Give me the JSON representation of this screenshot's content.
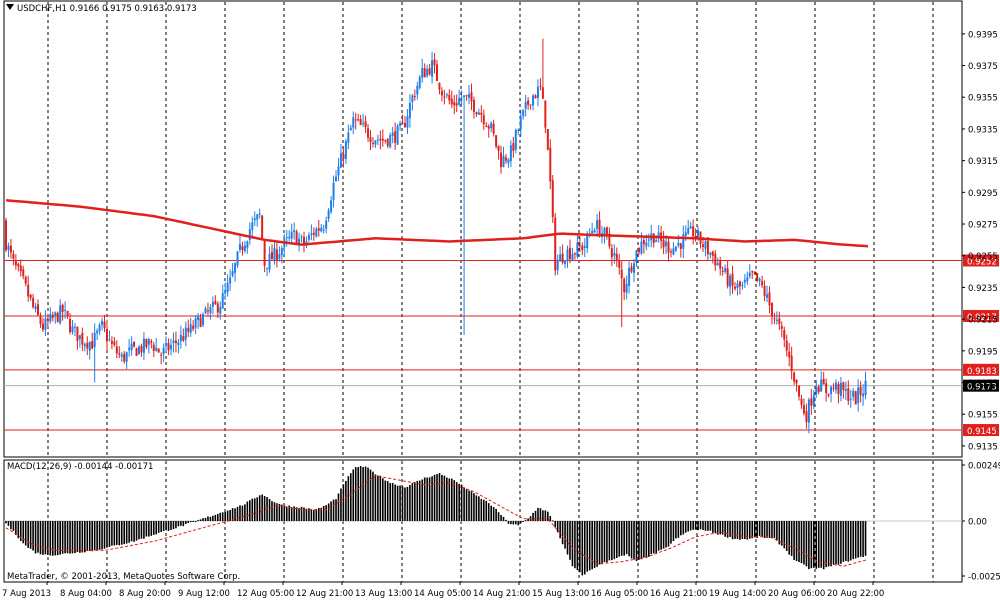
{
  "header": {
    "text": "USDCHF,H1  0.9166 0.9175 0.9163 0.9173"
  },
  "macd_header": {
    "text": "MACD(12,26,9) -0.00144 -0.00171"
  },
  "copyright": "MetaTrader, © 2001-2013, MetaQuotes Software Corp.",
  "colors": {
    "background": "#ffffff",
    "grid": "#000000",
    "bull_candle": "#1e7fe8",
    "bear_candle": "#e0201c",
    "moving_average": "#e0201c",
    "level_line": "#e0201c",
    "level_label_bg": "#e0201c",
    "current_price_label_bg": "#000000",
    "macd_histogram": "#000000",
    "macd_signal": "#e0201c"
  },
  "chart_data": [
    {
      "type": "candlestick",
      "symbol": "USDCHF",
      "timeframe": "H1",
      "ohlc_current": {
        "open": 0.9166,
        "high": 0.9175,
        "low": 0.9163,
        "close": 0.9173
      },
      "ylim": [
        0.9128,
        0.9405
      ],
      "y_tick_labels": [
        "0.9395",
        "0.9375",
        "0.9355",
        "0.9335",
        "0.9315",
        "0.9295",
        "0.9275",
        "0.9255",
        "0.9235",
        "0.9215",
        "0.9195",
        "0.9175",
        "0.9155",
        "0.9135"
      ],
      "x_tick_labels": [
        "7 Aug 2013",
        "8 Aug 04:00",
        "8 Aug 20:00",
        "9 Aug 12:00",
        "12 Aug 05:00",
        "12 Aug 21:00",
        "13 Aug 13:00",
        "14 Aug 05:00",
        "14 Aug 21:00",
        "15 Aug 13:00",
        "16 Aug 05:00",
        "16 Aug 21:00",
        "19 Aug 14:00",
        "20 Aug 06:00",
        "20 Aug 22:00"
      ],
      "grid": "vertical dashed",
      "levels": [
        {
          "value": 0.9252,
          "label": "0.9252"
        },
        {
          "value": 0.9217,
          "label": "0.9217"
        },
        {
          "value": 0.9183,
          "label": "0.9183"
        },
        {
          "value": 0.9145,
          "label": "0.9145"
        }
      ],
      "current_price": {
        "value": 0.9173,
        "label": "0.9173"
      },
      "close_path": [
        [
          0,
          0.9268
        ],
        [
          4,
          0.925
        ],
        [
          8,
          0.9238
        ],
        [
          12,
          0.9222
        ],
        [
          16,
          0.921
        ],
        [
          20,
          0.9215
        ],
        [
          24,
          0.922
        ],
        [
          28,
          0.9208
        ],
        [
          32,
          0.9202
        ],
        [
          36,
          0.92
        ],
        [
          40,
          0.921
        ],
        [
          44,
          0.9198
        ],
        [
          48,
          0.919
        ],
        [
          52,
          0.9195
        ],
        [
          56,
          0.9197
        ],
        [
          60,
          0.92
        ],
        [
          64,
          0.9193
        ],
        [
          68,
          0.9198
        ],
        [
          72,
          0.9203
        ],
        [
          76,
          0.9208
        ],
        [
          80,
          0.9215
        ],
        [
          84,
          0.922
        ],
        [
          88,
          0.9225
        ],
        [
          92,
          0.9238
        ],
        [
          96,
          0.9258
        ],
        [
          100,
          0.9272
        ],
        [
          104,
          0.928
        ],
        [
          106,
          0.925
        ],
        [
          110,
          0.9255
        ],
        [
          114,
          0.9262
        ],
        [
          118,
          0.9268
        ],
        [
          122,
          0.9262
        ],
        [
          126,
          0.927
        ],
        [
          130,
          0.9275
        ],
        [
          134,
          0.93
        ],
        [
          138,
          0.932
        ],
        [
          142,
          0.934
        ],
        [
          146,
          0.9335
        ],
        [
          150,
          0.933
        ],
        [
          154,
          0.9328
        ],
        [
          158,
          0.933
        ],
        [
          162,
          0.9335
        ],
        [
          166,
          0.9355
        ],
        [
          170,
          0.937
        ],
        [
          174,
          0.9375
        ],
        [
          178,
          0.936
        ],
        [
          182,
          0.935
        ],
        [
          186,
          0.9355
        ],
        [
          190,
          0.9352
        ],
        [
          194,
          0.9345
        ],
        [
          198,
          0.9335
        ],
        [
          202,
          0.9315
        ],
        [
          206,
          0.932
        ],
        [
          210,
          0.934
        ],
        [
          214,
          0.9355
        ],
        [
          218,
          0.936
        ],
        [
          220,
          0.934
        ],
        [
          222,
          0.93
        ],
        [
          224,
          0.925
        ],
        [
          228,
          0.9257
        ],
        [
          232,
          0.9258
        ],
        [
          236,
          0.9262
        ],
        [
          240,
          0.9275
        ],
        [
          244,
          0.9268
        ],
        [
          248,
          0.9255
        ],
        [
          252,
          0.9235
        ],
        [
          256,
          0.9255
        ],
        [
          260,
          0.9265
        ],
        [
          264,
          0.9268
        ],
        [
          268,
          0.9262
        ],
        [
          272,
          0.926
        ],
        [
          276,
          0.9265
        ],
        [
          280,
          0.927
        ],
        [
          284,
          0.9262
        ],
        [
          288,
          0.9255
        ],
        [
          292,
          0.9245
        ],
        [
          296,
          0.9235
        ],
        [
          300,
          0.9235
        ],
        [
          304,
          0.9242
        ],
        [
          308,
          0.9235
        ],
        [
          312,
          0.922
        ],
        [
          316,
          0.9205
        ],
        [
          320,
          0.9185
        ],
        [
          324,
          0.916
        ],
        [
          326,
          0.9155
        ],
        [
          330,
          0.9175
        ],
        [
          334,
          0.917
        ],
        [
          338,
          0.9172
        ],
        [
          342,
          0.9168
        ],
        [
          346,
          0.9165
        ],
        [
          350,
          0.9173
        ]
      ],
      "moving_average": [
        [
          0,
          0.929
        ],
        [
          30,
          0.9286
        ],
        [
          60,
          0.928
        ],
        [
          90,
          0.927
        ],
        [
          105,
          0.9265
        ],
        [
          120,
          0.9262
        ],
        [
          150,
          0.9266
        ],
        [
          180,
          0.9264
        ],
        [
          210,
          0.9266
        ],
        [
          225,
          0.9269
        ],
        [
          240,
          0.9268
        ],
        [
          260,
          0.9267
        ],
        [
          280,
          0.9266
        ],
        [
          300,
          0.9264
        ],
        [
          320,
          0.9265
        ],
        [
          340,
          0.9262
        ],
        [
          350,
          0.9261
        ]
      ]
    },
    {
      "type": "bar",
      "indicator": "MACD(12,26,9)",
      "main": -0.00144,
      "signal": -0.00171,
      "ylim": [
        -0.0027,
        0.0027
      ],
      "y_tick_labels": [
        "0.00249",
        "0.00",
        "-0.00253"
      ],
      "histogram_path": [
        [
          0,
          -0.0001
        ],
        [
          4,
          -0.0006
        ],
        [
          8,
          -0.0011
        ],
        [
          12,
          -0.0014
        ],
        [
          16,
          -0.0015
        ],
        [
          20,
          -0.0015
        ],
        [
          28,
          -0.0014
        ],
        [
          36,
          -0.0013
        ],
        [
          44,
          -0.0011
        ],
        [
          52,
          -0.0009
        ],
        [
          60,
          -0.0006
        ],
        [
          66,
          -0.0004
        ],
        [
          72,
          -0.0002
        ],
        [
          80,
          0.0001
        ],
        [
          88,
          0.0004
        ],
        [
          96,
          0.0007
        ],
        [
          104,
          0.0012
        ],
        [
          108,
          0.0009
        ],
        [
          112,
          0.0007
        ],
        [
          120,
          0.0006
        ],
        [
          126,
          0.0005
        ],
        [
          130,
          0.0007
        ],
        [
          134,
          0.001
        ],
        [
          138,
          0.0018
        ],
        [
          142,
          0.0024
        ],
        [
          146,
          0.0024
        ],
        [
          150,
          0.0021
        ],
        [
          156,
          0.0017
        ],
        [
          162,
          0.0015
        ],
        [
          170,
          0.0019
        ],
        [
          176,
          0.0021
        ],
        [
          182,
          0.0018
        ],
        [
          190,
          0.0012
        ],
        [
          196,
          0.0008
        ],
        [
          200,
          0.0004
        ],
        [
          204,
          -0.0001
        ],
        [
          208,
          -0.0002
        ],
        [
          212,
          0.0001
        ],
        [
          216,
          0.0006
        ],
        [
          220,
          0.0004
        ],
        [
          222,
          0.0
        ],
        [
          226,
          -0.001
        ],
        [
          230,
          -0.002
        ],
        [
          234,
          -0.0024
        ],
        [
          240,
          -0.002
        ],
        [
          246,
          -0.0017
        ],
        [
          252,
          -0.0015
        ],
        [
          256,
          -0.0018
        ],
        [
          262,
          -0.0015
        ],
        [
          268,
          -0.0012
        ],
        [
          272,
          -0.0008
        ],
        [
          278,
          -0.0004
        ],
        [
          284,
          -0.0004
        ],
        [
          290,
          -0.0006
        ],
        [
          296,
          -0.0008
        ],
        [
          302,
          -0.0008
        ],
        [
          306,
          -0.0007
        ],
        [
          312,
          -0.0008
        ],
        [
          316,
          -0.0012
        ],
        [
          320,
          -0.0017
        ],
        [
          326,
          -0.0021
        ],
        [
          332,
          -0.0021
        ],
        [
          338,
          -0.0019
        ],
        [
          344,
          -0.0017
        ],
        [
          350,
          -0.0015
        ]
      ],
      "signal_path": [
        [
          0,
          -0.0003
        ],
        [
          10,
          -0.001
        ],
        [
          20,
          -0.0013
        ],
        [
          40,
          -0.0013
        ],
        [
          60,
          -0.0009
        ],
        [
          80,
          -0.0003
        ],
        [
          100,
          0.0003
        ],
        [
          110,
          0.0007
        ],
        [
          120,
          0.0005
        ],
        [
          130,
          0.0005
        ],
        [
          140,
          0.0012
        ],
        [
          150,
          0.002
        ],
        [
          160,
          0.0018
        ],
        [
          170,
          0.0016
        ],
        [
          180,
          0.0017
        ],
        [
          190,
          0.0013
        ],
        [
          200,
          0.0007
        ],
        [
          210,
          0.0001
        ],
        [
          220,
          0.0001
        ],
        [
          230,
          -0.0012
        ],
        [
          240,
          -0.0019
        ],
        [
          250,
          -0.0018
        ],
        [
          260,
          -0.0016
        ],
        [
          270,
          -0.0012
        ],
        [
          280,
          -0.0007
        ],
        [
          290,
          -0.0005
        ],
        [
          300,
          -0.0007
        ],
        [
          310,
          -0.0007
        ],
        [
          320,
          -0.0012
        ],
        [
          330,
          -0.0018
        ],
        [
          340,
          -0.002
        ],
        [
          350,
          -0.0017
        ]
      ]
    }
  ]
}
